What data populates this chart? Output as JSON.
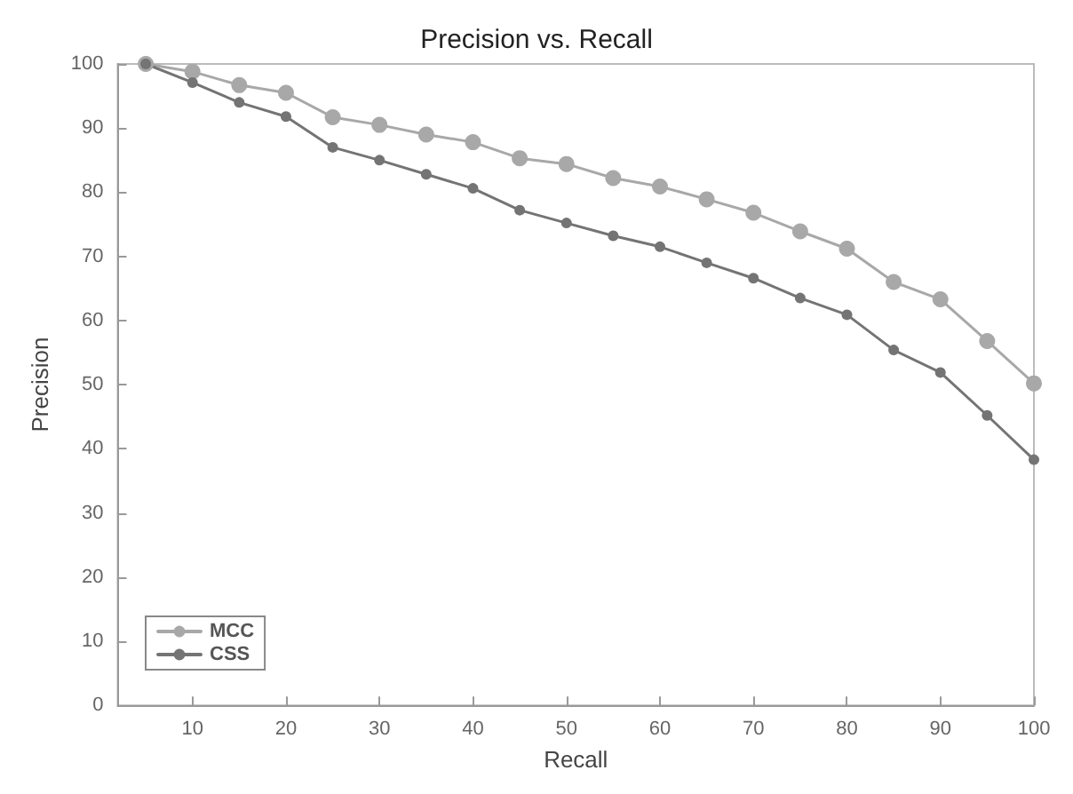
{
  "chart_data": {
    "type": "line",
    "title": "Precision vs. Recall",
    "xlabel": "Recall",
    "ylabel": "Precision",
    "x": [
      5,
      10,
      15,
      20,
      25,
      30,
      35,
      40,
      45,
      50,
      55,
      60,
      65,
      70,
      75,
      80,
      85,
      90,
      95,
      100
    ],
    "series": [
      {
        "name": "MCC",
        "color": "#a8a8a8",
        "values": [
          100,
          98.8,
          96.7,
          95.5,
          91.7,
          90.5,
          89,
          87.8,
          85.3,
          84.4,
          82.2,
          80.9,
          78.9,
          76.8,
          73.9,
          71.2,
          66,
          63.3,
          56.8,
          50.2
        ]
      },
      {
        "name": "CSS",
        "color": "#747474",
        "values": [
          100,
          97.1,
          94,
          91.8,
          87,
          85,
          82.8,
          80.6,
          77.2,
          75.2,
          73.2,
          71.5,
          69,
          66.6,
          63.5,
          60.9,
          55.4,
          51.9,
          45.2,
          38.3
        ]
      }
    ],
    "xlim": [
      2,
      100
    ],
    "xticks": [
      10,
      20,
      30,
      40,
      50,
      60,
      70,
      80,
      90,
      100
    ],
    "ylim": [
      0,
      100
    ],
    "yticks": [
      0,
      10,
      20,
      30,
      40,
      50,
      60,
      70,
      80,
      90,
      100
    ],
    "grid": false,
    "legend": "bottom left",
    "marker": "circle",
    "line_style": "solid"
  }
}
